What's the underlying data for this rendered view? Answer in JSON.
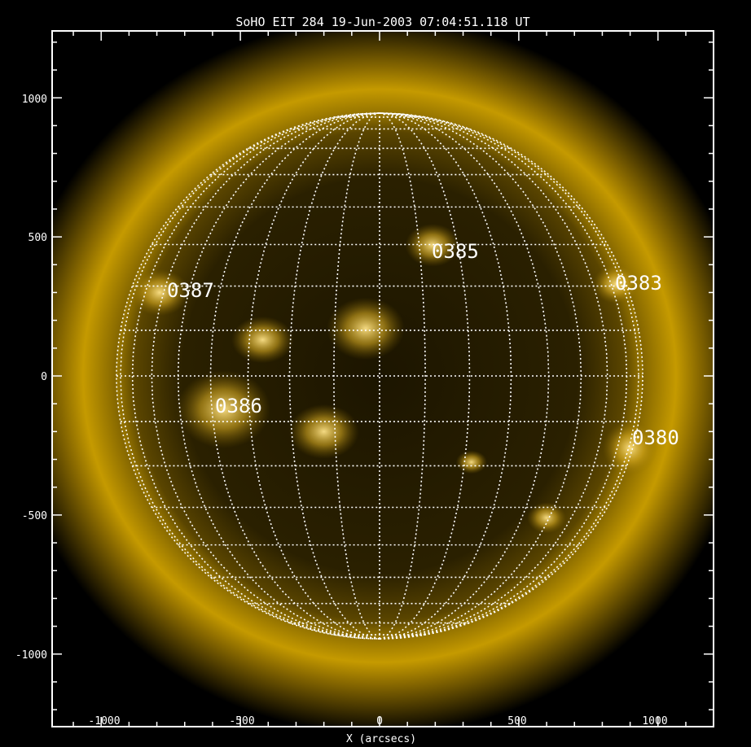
{
  "title": "SoHO EIT 284 19-Jun-2003 07:04:51.118 UT",
  "xlabel": "X (arcsecs)",
  "ylabel": "",
  "x_ticks": [
    "-1000",
    "-500",
    "0",
    "500",
    "1000"
  ],
  "y_ticks": [
    "1000",
    "500",
    "0",
    "-500",
    "-1000"
  ],
  "regions": [
    {
      "id": "0385",
      "x_arcsec": 190,
      "y_arcsec": 470
    },
    {
      "id": "0383",
      "x_arcsec": 850,
      "y_arcsec": 345
    },
    {
      "id": "0387",
      "x_arcsec": -750,
      "y_arcsec": 315
    },
    {
      "id": "0386",
      "x_arcsec": -590,
      "y_arcsec": -100
    },
    {
      "id": "0380",
      "x_arcsec": 920,
      "y_arcsec": -220
    }
  ],
  "axes": {
    "x_range": [
      -1230,
      1230
    ],
    "y_range": [
      -1230,
      1230
    ],
    "solar_radius_arcsec": 945
  },
  "colors": {
    "background": "#000000",
    "corona": "#d4a400",
    "grid": "#ffffff",
    "text": "#ffffff",
    "frame": "#ffffff",
    "page": "#ffffff"
  }
}
